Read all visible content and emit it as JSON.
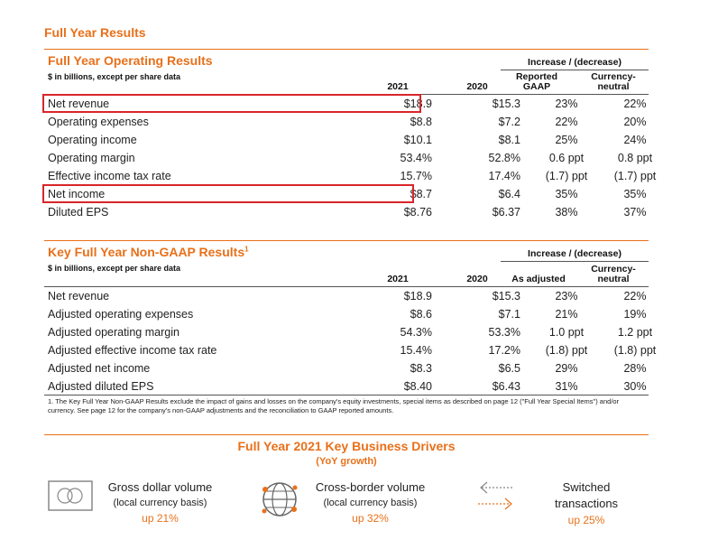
{
  "page_title": "Full Year Results",
  "operating": {
    "title": "Full Year Operating Results",
    "subtitle": "$ in billions, except per share data",
    "increase_header": "Increase / (decrease)",
    "col_2021": "2021",
    "col_2020": "2020",
    "col_reported": "Reported GAAP",
    "col_cn": "Currency-neutral",
    "rows": [
      {
        "label": "Net revenue",
        "v2021": "$18.9",
        "v2020": "$15.3",
        "rep": "23%",
        "cn": "22%"
      },
      {
        "label": "Operating expenses",
        "v2021": "$8.8",
        "v2020": "$7.2",
        "rep": "22%",
        "cn": "20%"
      },
      {
        "label": "Operating income",
        "v2021": "$10.1",
        "v2020": "$8.1",
        "rep": "25%",
        "cn": "24%"
      },
      {
        "label": "Operating margin",
        "v2021": "53.4%",
        "v2020": "52.8%",
        "rep": "0.6 ppt",
        "cn": "0.8 ppt"
      },
      {
        "label": "Effective income tax rate",
        "v2021": "15.7%",
        "v2020": "17.4%",
        "rep": "(1.7) ppt",
        "cn": "(1.7) ppt"
      },
      {
        "label": "Net income",
        "v2021": "$8.7",
        "v2020": "$6.4",
        "rep": "35%",
        "cn": "35%"
      },
      {
        "label": "Diluted EPS",
        "v2021": "$8.76",
        "v2020": "$6.37",
        "rep": "38%",
        "cn": "37%"
      }
    ]
  },
  "nongaap": {
    "title": "Key Full Year Non-GAAP Results",
    "title_sup": "1",
    "subtitle": "$ in billions, except per share data",
    "increase_header": "Increase / (decrease)",
    "col_2021": "2021",
    "col_2020": "2020",
    "col_adjusted": "As adjusted",
    "col_cn": "Currency-neutral",
    "rows": [
      {
        "label": "Net revenue",
        "v2021": "$18.9",
        "v2020": "$15.3",
        "adj": "23%",
        "cn": "22%"
      },
      {
        "label": "Adjusted operating expenses",
        "v2021": "$8.6",
        "v2020": "$7.1",
        "adj": "21%",
        "cn": "19%"
      },
      {
        "label": "Adjusted operating margin",
        "v2021": "54.3%",
        "v2020": "53.3%",
        "adj": "1.0 ppt",
        "cn": "1.2 ppt"
      },
      {
        "label": "Adjusted effective income tax rate",
        "v2021": "15.4%",
        "v2020": "17.2%",
        "adj": "(1.8) ppt",
        "cn": "(1.8) ppt"
      },
      {
        "label": "Adjusted net income",
        "v2021": "$8.3",
        "v2020": "$6.5",
        "adj": "29%",
        "cn": "28%"
      },
      {
        "label": "Adjusted diluted EPS",
        "v2021": "$8.40",
        "v2020": "$6.43",
        "adj": "31%",
        "cn": "30%"
      }
    ],
    "footnote": "1. The Key Full Year Non-GAAP Results exclude the impact of gains and losses on the company's equity investments, special items as described on page 12 (\"Full Year Special Items\") and/or currency. See page 12 for the company's non-GAAP adjustments and the reconciliation to GAAP reported amounts."
  },
  "drivers": {
    "title": "Full Year 2021 Key Business Drivers",
    "subtitle": "(YoY growth)",
    "items": [
      {
        "line1": "Gross dollar volume",
        "line2": "(local currency basis)",
        "value": "up 21%",
        "icon": "card-icon"
      },
      {
        "line1": "Cross-border volume",
        "line2": "(local currency basis)",
        "value": "up 32%",
        "icon": "globe-icon"
      },
      {
        "line1": "Switched",
        "line2": "transactions",
        "value": "up 25%",
        "icon": "arrows-icon"
      }
    ]
  },
  "colors": {
    "accent": "#e8701a",
    "highlight": "#d9252b"
  }
}
